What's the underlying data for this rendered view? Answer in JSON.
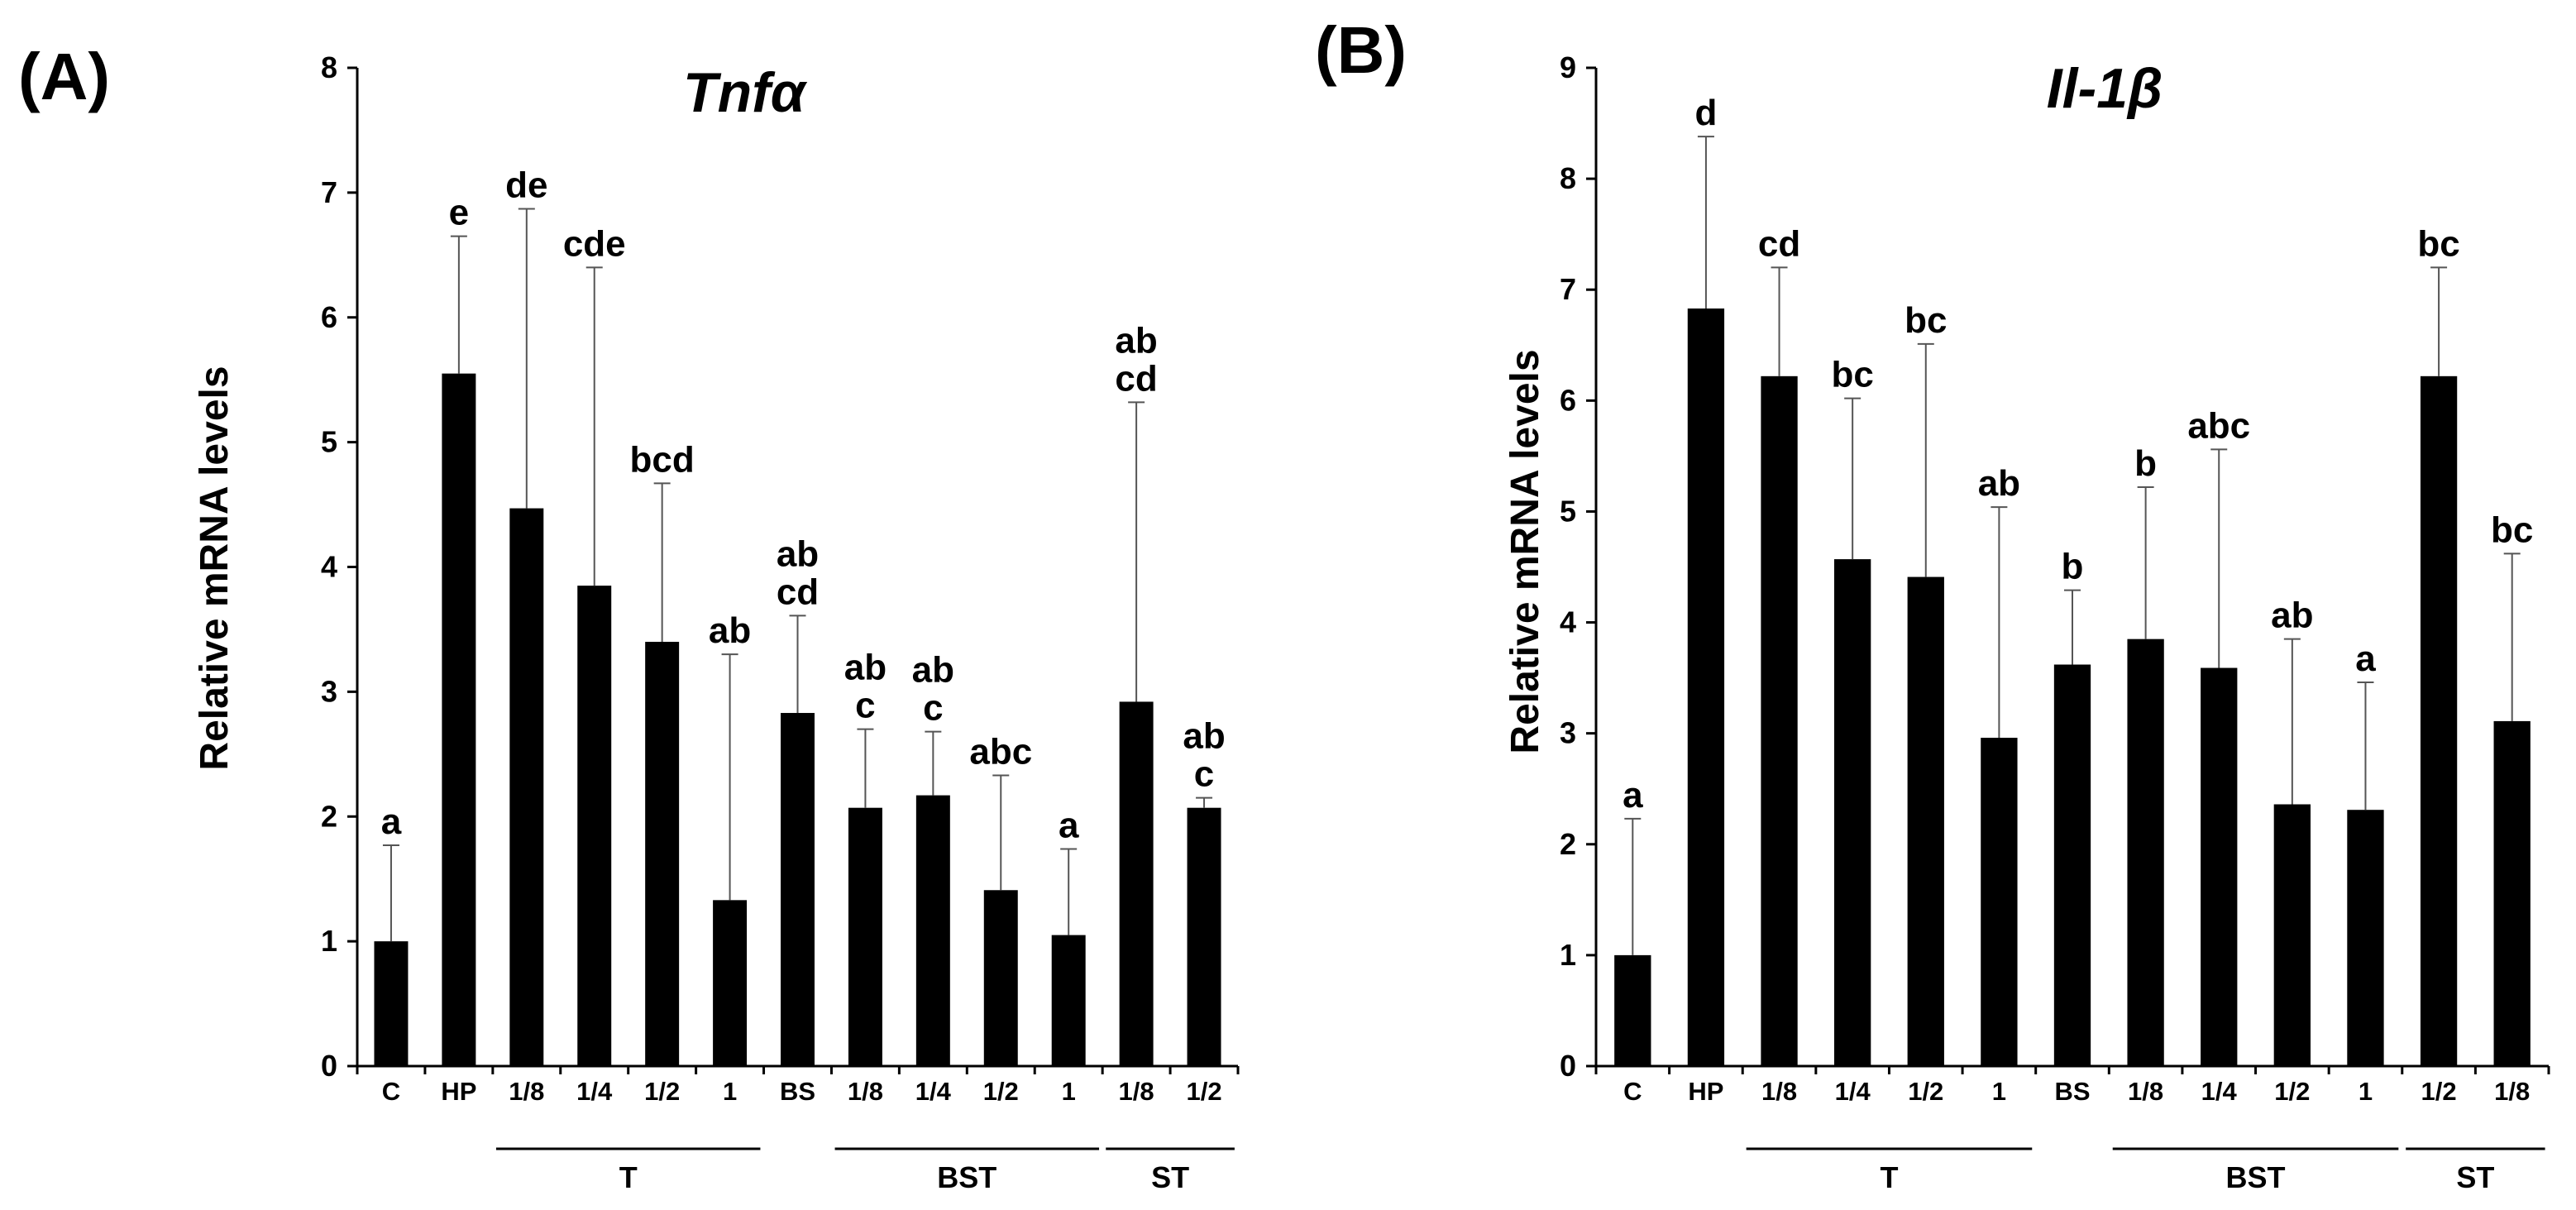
{
  "chart_data": [
    {
      "type": "bar",
      "panel": "(A)",
      "title": "Tnfα",
      "title_italic": true,
      "ylabel": "Relative mRNA levels",
      "xlabel": "",
      "ylim": [
        0,
        8
      ],
      "yticks": [
        "0",
        "1",
        "2",
        "3",
        "4",
        "5",
        "6",
        "7",
        "8"
      ],
      "categories": [
        "C",
        "HP",
        "1/8",
        "1/4",
        "1/2",
        "1",
        "BS",
        "1/8",
        "1/4",
        "1/2",
        "1",
        "1/8",
        "1/2"
      ],
      "values": [
        1.0,
        5.55,
        4.47,
        3.85,
        3.4,
        1.33,
        2.83,
        2.07,
        2.17,
        1.41,
        1.05,
        2.92,
        2.07
      ],
      "errors": [
        0.77,
        1.1,
        2.4,
        2.55,
        1.27,
        1.97,
        0.78,
        0.63,
        0.51,
        0.92,
        0.69,
        2.4,
        0.08
      ],
      "significance": [
        "a",
        "e",
        "de",
        "cde",
        "bcd",
        "ab",
        "ab\ncd",
        "ab\nc",
        "ab\nc",
        "abc",
        "a",
        "ab\ncd",
        "ab\nc"
      ],
      "groups": [
        {
          "label": "T",
          "from": 2,
          "to": 5
        },
        {
          "label": "BST",
          "from": 7,
          "to": 10
        },
        {
          "label": "ST",
          "from": 11,
          "to": 12
        }
      ],
      "bar_color": "#000000",
      "grid": false
    },
    {
      "type": "bar",
      "panel": "(B)",
      "title": "Il-1β",
      "title_italic": true,
      "ylabel": "Relative  mRNA levels",
      "xlabel": "",
      "ylim": [
        0,
        9
      ],
      "yticks": [
        "0",
        "1",
        "2",
        "3",
        "4",
        "5",
        "6",
        "7",
        "8",
        "9"
      ],
      "categories": [
        "C",
        "HP",
        "1/8",
        "1/4",
        "1/2",
        "1",
        "BS",
        "1/8",
        "1/4",
        "1/2",
        "1",
        "1/2",
        "1/8"
      ],
      "values": [
        1.0,
        6.83,
        6.22,
        4.57,
        4.41,
        2.96,
        3.62,
        3.85,
        3.59,
        2.36,
        2.31,
        6.22,
        3.11
      ],
      "errors": [
        1.23,
        1.55,
        0.98,
        1.45,
        2.1,
        2.08,
        0.67,
        1.37,
        1.97,
        1.49,
        1.15,
        0.98,
        1.51
      ],
      "significance": [
        "a",
        "d",
        "cd",
        "bc",
        "bc",
        "ab",
        "b",
        "b",
        "abc",
        "ab",
        "a",
        "bc",
        "bc"
      ],
      "groups": [
        {
          "label": "T",
          "from": 2,
          "to": 5
        },
        {
          "label": "BST",
          "from": 7,
          "to": 10
        },
        {
          "label": "ST",
          "from": 11,
          "to": 12
        }
      ],
      "bar_color": "#000000",
      "grid": false
    }
  ]
}
